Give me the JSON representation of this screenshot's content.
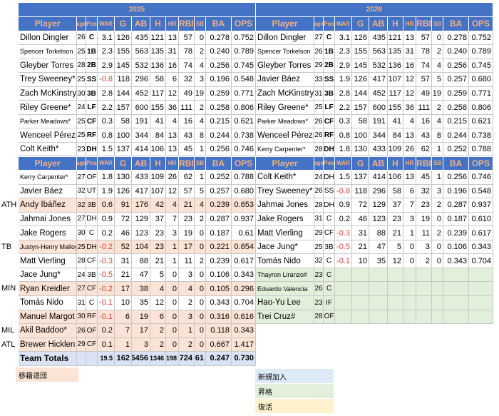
{
  "years": [
    "2025",
    "2026"
  ],
  "headers": {
    "player": "Player",
    "age": "age",
    "pos": "Pos",
    "war": "WAR",
    "g": "G",
    "ab": "AB",
    "h": "H",
    "hr": "HR",
    "rbi": "RBI",
    "sb": "SB",
    "ba": "BA",
    "ops": "OPS"
  },
  "colors": {
    "header_bg": "#4472c4",
    "header_text": "#f4b183",
    "departed": "#fbe4d5",
    "new": "#ddebf7",
    "promoted": "#e2efda",
    "returned": "#fff2cc",
    "total": "#dae3f3"
  },
  "left_top": [
    {
      "name": "Dillon Dingler",
      "age": "26",
      "pos": "C",
      "pos_bold": true,
      "war": "3.1",
      "g": "126",
      "ab": "435",
      "h": "121",
      "hr": "13",
      "rbi": "57",
      "sb": "0",
      "ba": "0.278",
      "ops": "0.752"
    },
    {
      "name": "Spencer Torkelson",
      "small": true,
      "age": "25",
      "pos": "1B",
      "pos_bold": true,
      "war": "2.3",
      "g": "155",
      "ab": "563",
      "h": "135",
      "hr": "31",
      "rbi": "78",
      "sb": "2",
      "ba": "0.240",
      "ops": "0.789"
    },
    {
      "name": "Gleyber Torres",
      "age": "28",
      "pos": "2B",
      "pos_bold": true,
      "war": "2.9",
      "g": "145",
      "ab": "532",
      "h": "136",
      "hr": "16",
      "rbi": "74",
      "sb": "4",
      "ba": "0.256",
      "ops": "0.745"
    },
    {
      "name": "Trey Sweeney*",
      "age": "25",
      "pos": "SS",
      "pos_bold": true,
      "war": "-0.8",
      "neg": true,
      "g": "118",
      "ab": "296",
      "h": "58",
      "hr": "6",
      "rbi": "32",
      "sb": "3",
      "ba": "0.196",
      "ops": "0.548"
    },
    {
      "name": "Zach McKinstry*",
      "age": "30",
      "pos": "3B",
      "pos_bold": true,
      "war": "2.8",
      "g": "144",
      "ab": "452",
      "h": "117",
      "hr": "12",
      "rbi": "49",
      "sb": "19",
      "ba": "0.259",
      "ops": "0.771"
    },
    {
      "name": "Riley Greene*",
      "age": "24",
      "pos": "LF",
      "pos_bold": true,
      "war": "2.2",
      "g": "157",
      "ab": "600",
      "h": "155",
      "hr": "36",
      "rbi": "111",
      "sb": "2",
      "ba": "0.258",
      "ops": "0.806"
    },
    {
      "name": "Parker Meadows*",
      "small": true,
      "age": "25",
      "pos": "CF",
      "pos_bold": true,
      "war": "0.3",
      "g": "58",
      "ab": "191",
      "h": "41",
      "hr": "4",
      "rbi": "16",
      "sb": "4",
      "ba": "0.215",
      "ops": "0.621"
    },
    {
      "name": "Wenceel Pérez#",
      "age": "25",
      "pos": "RF",
      "pos_bold": true,
      "war": "0.8",
      "g": "100",
      "ab": "344",
      "h": "84",
      "hr": "13",
      "rbi": "43",
      "sb": "8",
      "ba": "0.244",
      "ops": "0.738"
    },
    {
      "name": "Colt Keith*",
      "age": "23",
      "pos": "DH",
      "pos_bold": true,
      "war": "1.5",
      "g": "137",
      "ab": "414",
      "h": "106",
      "hr": "13",
      "rbi": "45",
      "sb": "1",
      "ba": "0.256",
      "ops": "0.746"
    }
  ],
  "right_top": [
    {
      "name": "Dillon Dingler",
      "age": "27",
      "pos": "C",
      "pos_bold": true,
      "war": "3.1",
      "g": "126",
      "ab": "435",
      "h": "121",
      "hr": "13",
      "rbi": "57",
      "sb": "0",
      "ba": "0.278",
      "ops": "0.752"
    },
    {
      "name": "Spencer Torkelson",
      "small": true,
      "age": "26",
      "pos": "1B",
      "pos_bold": true,
      "war": "2.3",
      "g": "155",
      "ab": "563",
      "h": "135",
      "hr": "31",
      "rbi": "78",
      "sb": "2",
      "ba": "0.240",
      "ops": "0.789"
    },
    {
      "name": "Gleyber Torres",
      "age": "29",
      "pos": "2B",
      "pos_bold": true,
      "war": "2.9",
      "g": "145",
      "ab": "532",
      "h": "136",
      "hr": "16",
      "rbi": "74",
      "sb": "4",
      "ba": "0.256",
      "ops": "0.745"
    },
    {
      "name": "Javier Báez",
      "age": "33",
      "pos": "SS",
      "pos_bold": true,
      "war": "1.9",
      "g": "126",
      "ab": "417",
      "h": "107",
      "hr": "12",
      "rbi": "57",
      "sb": "5",
      "ba": "0.257",
      "ops": "0.680"
    },
    {
      "name": "Zach McKinstry*",
      "age": "31",
      "pos": "3B",
      "pos_bold": true,
      "war": "2.8",
      "g": "144",
      "ab": "452",
      "h": "117",
      "hr": "12",
      "rbi": "49",
      "sb": "19",
      "ba": "0.259",
      "ops": "0.771"
    },
    {
      "name": "Riley Greene*",
      "age": "25",
      "pos": "LF",
      "pos_bold": true,
      "war": "2.2",
      "g": "157",
      "ab": "600",
      "h": "155",
      "hr": "36",
      "rbi": "111",
      "sb": "2",
      "ba": "0.258",
      "ops": "0.806"
    },
    {
      "name": "Parker Meadows*",
      "small": true,
      "age": "26",
      "pos": "CF",
      "pos_bold": true,
      "war": "0.3",
      "g": "58",
      "ab": "191",
      "h": "41",
      "hr": "4",
      "rbi": "16",
      "sb": "4",
      "ba": "0.215",
      "ops": "0.621"
    },
    {
      "name": "Wenceel Pérez#",
      "age": "26",
      "pos": "RF",
      "pos_bold": true,
      "war": "0.8",
      "g": "100",
      "ab": "344",
      "h": "84",
      "hr": "13",
      "rbi": "43",
      "sb": "8",
      "ba": "0.244",
      "ops": "0.738"
    },
    {
      "name": "Kerry Carpenter*",
      "small": true,
      "age": "28",
      "pos": "DH",
      "pos_bold": true,
      "war": "1.8",
      "g": "130",
      "ab": "433",
      "h": "109",
      "hr": "26",
      "rbi": "62",
      "sb": "1",
      "ba": "0.252",
      "ops": "0.788"
    }
  ],
  "left_bench": [
    {
      "name": "Kerry Carpenter*",
      "small": true,
      "age": "27",
      "pos": "OF",
      "war": "1.8",
      "g": "130",
      "ab": "433",
      "h": "109",
      "hr": "26",
      "rbi": "62",
      "sb": "1",
      "ba": "0.252",
      "ops": "0.788"
    },
    {
      "name": "Javier Báez",
      "age": "32",
      "pos": "UT",
      "war": "1.9",
      "g": "126",
      "ab": "417",
      "h": "107",
      "hr": "12",
      "rbi": "57",
      "sb": "5",
      "ba": "0.257",
      "ops": "0.680"
    },
    {
      "name": "Andy Ibáñez",
      "team": "ATH",
      "departed": true,
      "age": "32",
      "pos": "3B",
      "war": "0.6",
      "g": "91",
      "ab": "176",
      "h": "42",
      "hr": "4",
      "rbi": "21",
      "sb": "4",
      "ba": "0.239",
      "ops": "0.653"
    },
    {
      "name": "Jahmai Jones",
      "age": "27",
      "pos": "DH",
      "war": "0.9",
      "g": "72",
      "ab": "129",
      "h": "37",
      "hr": "7",
      "rbi": "23",
      "sb": "2",
      "ba": "0.287",
      "ops": "0.937"
    },
    {
      "name": "Jake Rogers",
      "age": "30",
      "pos": "C",
      "war": "0.2",
      "g": "46",
      "ab": "123",
      "h": "23",
      "hr": "3",
      "rbi": "19",
      "sb": "0",
      "ba": "0.187",
      "ops": "0.61"
    },
    {
      "name": "Justyn-Henry Malloy",
      "small": true,
      "team": "TB",
      "departed": true,
      "age": "25",
      "pos": "DH",
      "war": "-0.2",
      "neg": true,
      "g": "52",
      "ab": "104",
      "h": "23",
      "hr": "1",
      "rbi": "17",
      "sb": "0",
      "ba": "0.221",
      "ops": "0.654"
    },
    {
      "name": "Matt Vierling",
      "age": "28",
      "pos": "CF",
      "war": "-0.3",
      "neg": true,
      "g": "31",
      "ab": "88",
      "h": "21",
      "hr": "1",
      "rbi": "11",
      "sb": "2",
      "ba": "0.239",
      "ops": "0.617"
    },
    {
      "name": "Jace Jung*",
      "age": "24",
      "pos": "3B",
      "war": "-0.5",
      "neg": true,
      "g": "21",
      "ab": "47",
      "h": "5",
      "hr": "0",
      "rbi": "3",
      "sb": "0",
      "ba": "0.106",
      "ops": "0.343"
    },
    {
      "name": "Ryan Kreidler",
      "team": "MIN",
      "departed": true,
      "age": "27",
      "pos": "CF",
      "war": "-0.2",
      "neg": true,
      "g": "17",
      "ab": "38",
      "h": "4",
      "hr": "0",
      "rbi": "4",
      "sb": "0",
      "ba": "0.105",
      "ops": "0.296"
    },
    {
      "name": "Tomás Nido",
      "age": "31",
      "pos": "C",
      "war": "-0.1",
      "neg": true,
      "g": "10",
      "ab": "35",
      "h": "12",
      "hr": "0",
      "rbi": "2",
      "sb": "0",
      "ba": "0.343",
      "ops": "0.704"
    },
    {
      "name": "Manuel Margot",
      "departed": true,
      "age": "30",
      "pos": "RF",
      "war": "-0.1",
      "neg": true,
      "g": "6",
      "ab": "19",
      "h": "6",
      "hr": "0",
      "rbi": "3",
      "sb": "0",
      "ba": "0.316",
      "ops": "0.616"
    },
    {
      "name": "Akil Baddoo*",
      "team": "MIL",
      "departed": true,
      "age": "26",
      "pos": "OF",
      "war": "0.2",
      "g": "7",
      "ab": "17",
      "h": "2",
      "hr": "0",
      "rbi": "1",
      "sb": "0",
      "ba": "0.118",
      "ops": "0.343"
    },
    {
      "name": "Brewer Hicklen",
      "team": "ATL",
      "departed": true,
      "age": "29",
      "pos": "CF",
      "war": "0.1",
      "g": "1",
      "ab": "3",
      "h": "2",
      "hr": "0",
      "rbi": "2",
      "sb": "0",
      "ba": "0.667",
      "ops": "1.417"
    }
  ],
  "right_bench": [
    {
      "name": "Colt Keith*",
      "age": "24",
      "pos": "DH",
      "war": "1.5",
      "g": "137",
      "ab": "414",
      "h": "106",
      "hr": "13",
      "rbi": "45",
      "sb": "1",
      "ba": "0.256",
      "ops": "0.746"
    },
    {
      "name": "Trey Sweeney*",
      "age": "26",
      "pos": "SS",
      "war": "-0.8",
      "neg": true,
      "g": "118",
      "ab": "296",
      "h": "58",
      "hr": "6",
      "rbi": "32",
      "sb": "3",
      "ba": "0.196",
      "ops": "0.548"
    },
    {
      "name": "Jahmai Jones",
      "age": "28",
      "pos": "DH",
      "war": "0.9",
      "g": "72",
      "ab": "129",
      "h": "37",
      "hr": "7",
      "rbi": "23",
      "sb": "2",
      "ba": "0.287",
      "ops": "0.937"
    },
    {
      "name": "Jake Rogers",
      "age": "31",
      "pos": "C",
      "war": "0.2",
      "g": "46",
      "ab": "123",
      "h": "23",
      "hr": "3",
      "rbi": "19",
      "sb": "0",
      "ba": "0.187",
      "ops": "0.610"
    },
    {
      "name": "Matt Vierling",
      "age": "29",
      "pos": "CF",
      "war": "-0.3",
      "neg": true,
      "g": "31",
      "ab": "88",
      "h": "21",
      "hr": "1",
      "rbi": "11",
      "sb": "2",
      "ba": "0.239",
      "ops": "0.617"
    },
    {
      "name": "Jace Jung*",
      "age": "25",
      "pos": "3B",
      "war": "-0.5",
      "neg": true,
      "g": "21",
      "ab": "47",
      "h": "5",
      "hr": "0",
      "rbi": "3",
      "sb": "0",
      "ba": "0.106",
      "ops": "0.343"
    },
    {
      "name": "Tomás Nido",
      "age": "32",
      "pos": "C",
      "war": "-0.1",
      "neg": true,
      "g": "10",
      "ab": "35",
      "h": "12",
      "hr": "0",
      "rbi": "2",
      "sb": "0",
      "ba": "0.343",
      "ops": "0.704"
    },
    {
      "name": "Thayron Liranzo#",
      "small": true,
      "new": true,
      "age": "23",
      "pos": "C"
    },
    {
      "name": "Eduardo Valencia",
      "small": true,
      "new": true,
      "age": "26",
      "pos": "C"
    },
    {
      "name": "Hao-Yu Lee",
      "new": true,
      "age": "23",
      "pos": "IF"
    },
    {
      "name": "Trei Cruz#",
      "new": true,
      "age": "28",
      "pos": "OF"
    }
  ],
  "totals": {
    "label": "Team Totals",
    "war": "19.5",
    "g": "162",
    "ab": "5456",
    "h": "1346",
    "hr": "198",
    "rbi": "724",
    "sb": "61",
    "ba": "0.247",
    "ops": "0.730"
  },
  "legend": {
    "departed": "移籍退団",
    "new": "新規加入",
    "promoted": "昇格",
    "returned": "復活"
  }
}
